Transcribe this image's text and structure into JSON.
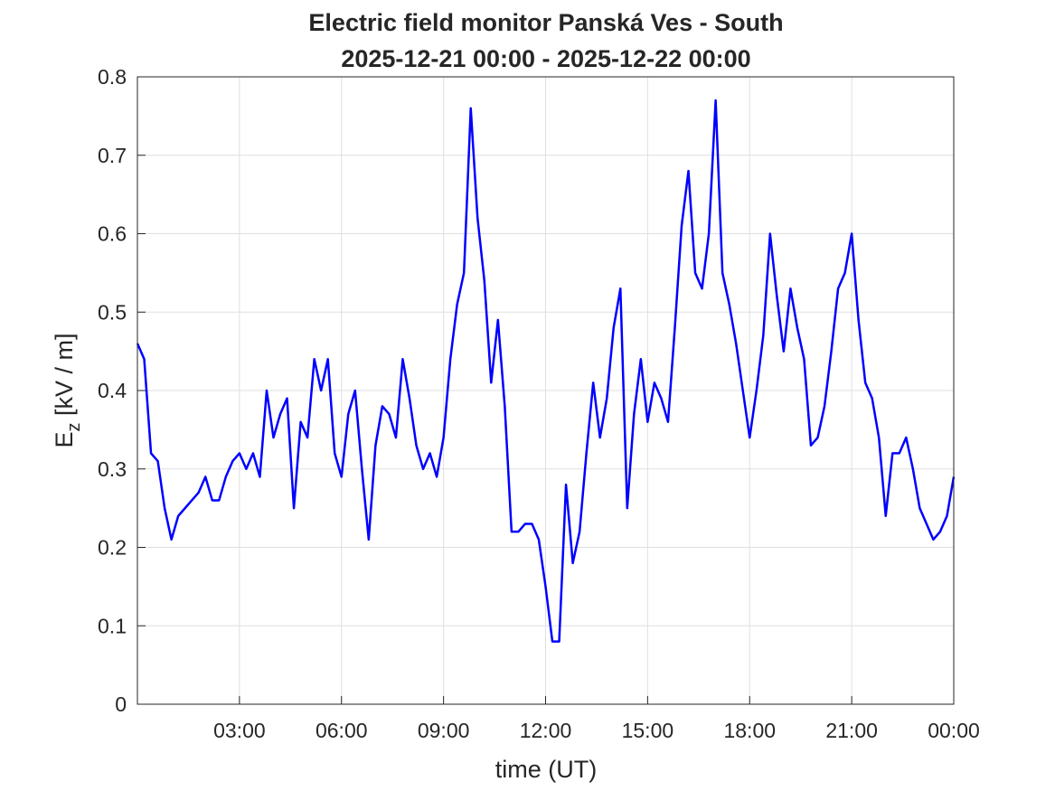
{
  "chart_data": {
    "type": "line",
    "title": "Electric field monitor Panská Ves - South",
    "subtitle": "2025-12-21 00:00 - 2025-12-22 00:00",
    "xlabel": "time (UT)",
    "ylabel": {
      "main": "E",
      "sub": "z",
      "rest": " [kV / m]"
    },
    "xlim": [
      0,
      24
    ],
    "xticks": [
      {
        "value": 3,
        "label": "03:00"
      },
      {
        "value": 6,
        "label": "06:00"
      },
      {
        "value": 9,
        "label": "09:00"
      },
      {
        "value": 12,
        "label": "12:00"
      },
      {
        "value": 15,
        "label": "15:00"
      },
      {
        "value": 18,
        "label": "18:00"
      },
      {
        "value": 21,
        "label": "21:00"
      },
      {
        "value": 24,
        "label": "00:00"
      }
    ],
    "ylim": [
      0,
      0.8
    ],
    "yticks": [
      0,
      0.1,
      0.2,
      0.3,
      0.4,
      0.5,
      0.6,
      0.7,
      0.8
    ],
    "grid": true,
    "x": [
      0,
      0.2,
      0.4,
      0.6,
      0.8,
      1,
      1.2,
      1.4,
      1.6,
      1.8,
      2,
      2.2,
      2.4,
      2.6,
      2.8,
      3,
      3.2,
      3.4,
      3.6,
      3.8,
      4,
      4.2,
      4.4,
      4.6,
      4.8,
      5,
      5.2,
      5.4,
      5.6,
      5.8,
      6,
      6.2,
      6.4,
      6.6,
      6.8,
      7,
      7.2,
      7.4,
      7.6,
      7.8,
      8,
      8.2,
      8.4,
      8.6,
      8.8,
      9,
      9.2,
      9.4,
      9.6,
      9.8,
      10,
      10.2,
      10.4,
      10.6,
      10.8,
      11,
      11.2,
      11.4,
      11.6,
      11.8,
      12,
      12.2,
      12.4,
      12.6,
      12.8,
      13,
      13.2,
      13.4,
      13.6,
      13.8,
      14,
      14.2,
      14.4,
      14.6,
      14.8,
      15,
      15.2,
      15.4,
      15.6,
      15.8,
      16,
      16.2,
      16.4,
      16.6,
      16.8,
      17,
      17.2,
      17.4,
      17.6,
      17.8,
      18,
      18.2,
      18.4,
      18.6,
      18.8,
      19,
      19.2,
      19.4,
      19.6,
      19.8,
      20,
      20.2,
      20.4,
      20.6,
      20.8,
      21,
      21.2,
      21.4,
      21.6,
      21.8,
      22,
      22.2,
      22.4,
      22.6,
      22.8,
      23,
      23.2,
      23.4,
      23.6,
      23.8,
      24
    ],
    "series": [
      {
        "color": "#0000ff",
        "values": [
          0.46,
          0.44,
          0.32,
          0.31,
          0.25,
          0.21,
          0.24,
          0.25,
          0.26,
          0.27,
          0.29,
          0.26,
          0.26,
          0.29,
          0.31,
          0.32,
          0.3,
          0.32,
          0.29,
          0.4,
          0.34,
          0.37,
          0.39,
          0.25,
          0.36,
          0.34,
          0.44,
          0.4,
          0.44,
          0.32,
          0.29,
          0.37,
          0.4,
          0.3,
          0.21,
          0.33,
          0.38,
          0.37,
          0.34,
          0.44,
          0.39,
          0.33,
          0.3,
          0.32,
          0.29,
          0.34,
          0.44,
          0.51,
          0.55,
          0.76,
          0.62,
          0.54,
          0.41,
          0.49,
          0.38,
          0.22,
          0.22,
          0.23,
          0.23,
          0.21,
          0.15,
          0.08,
          0.08,
          0.28,
          0.18,
          0.22,
          0.32,
          0.41,
          0.34,
          0.39,
          0.48,
          0.53,
          0.25,
          0.37,
          0.44,
          0.36,
          0.41,
          0.39,
          0.36,
          0.48,
          0.61,
          0.68,
          0.55,
          0.53,
          0.6,
          0.77,
          0.55,
          0.51,
          0.46,
          0.4,
          0.34,
          0.4,
          0.47,
          0.6,
          0.52,
          0.45,
          0.53,
          0.48,
          0.44,
          0.33,
          0.34,
          0.38,
          0.45,
          0.53,
          0.55,
          0.6,
          0.49,
          0.41,
          0.39,
          0.34,
          0.24,
          0.32,
          0.32,
          0.34,
          0.3,
          0.25,
          0.23,
          0.21,
          0.22,
          0.24,
          0.29
        ]
      }
    ]
  }
}
